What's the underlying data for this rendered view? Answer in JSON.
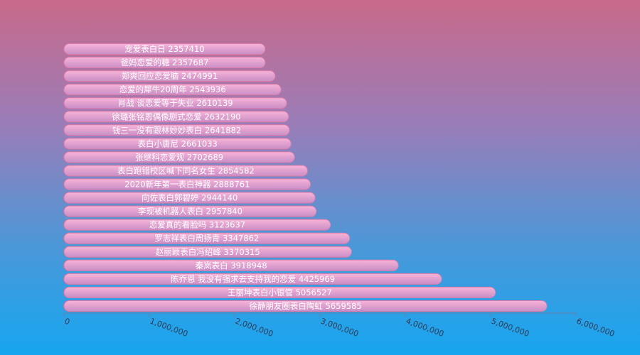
{
  "chart_data": {
    "type": "bar",
    "orientation": "horizontal",
    "title": "",
    "xlabel": "",
    "ylabel": "",
    "xlim": [
      0,
      6000000
    ],
    "x_ticks": [
      "0",
      "1,000,000",
      "2,000,000",
      "3,000,000",
      "4,000,000",
      "5,000,000",
      "6,000,000"
    ],
    "grid": false,
    "colors": {
      "bar_top": "#f7b3d8",
      "bar_bottom": "#c98ec6",
      "bar_border": "#e07aa8"
    },
    "bars": [
      {
        "category": "宠爱表白日",
        "value": 2357410,
        "label": "宠爱表白日 2357410"
      },
      {
        "category": "爸妈恋爱的糖",
        "value": 2357687,
        "label": "爸妈恋爱的糖 2357687"
      },
      {
        "category": "郑爽回应恋爱脑",
        "value": 2474991,
        "label": "郑爽回应恋爱脑 2474991"
      },
      {
        "category": "恋爱的犀牛20周年",
        "value": 2543936,
        "label": "恋爱的犀牛20周年 2543936"
      },
      {
        "category": "肖战 谈恋爱等于失业",
        "value": 2610139,
        "label": "肖战 谈恋爱等于失业 2610139"
      },
      {
        "category": "徐璐张铭恩偶像剧式恋爱",
        "value": 2632190,
        "label": "徐璐张铭恩偶像剧式恋爱 2632190"
      },
      {
        "category": "钱三一没有跟林妙妙表白",
        "value": 2641882,
        "label": "钱三一没有跟林妙妙表白 2641882"
      },
      {
        "category": "表白小唐尼",
        "value": 2661033,
        "label": "表白小唐尼 2661033"
      },
      {
        "category": "张继科恋爱观",
        "value": 2702689,
        "label": "张继科恋爱观 2702689"
      },
      {
        "category": "表白跑错校区喊下同名女生",
        "value": 2854582,
        "label": "表白跑错校区喊下同名女生 2854582"
      },
      {
        "category": "2020新年第一表白神器",
        "value": 2888761,
        "label": "2020新年第一表白神器 2888761"
      },
      {
        "category": "向佐表白郭碧婷",
        "value": 2944140,
        "label": "向佐表白郭碧婷 2944140"
      },
      {
        "category": "李现被机器人表白",
        "value": 2957840,
        "label": "李现被机器人表白 2957840"
      },
      {
        "category": "恋爱真的看脸吗",
        "value": 3123637,
        "label": "恋爱真的看脸吗 3123637"
      },
      {
        "category": "罗志祥表白周扬青",
        "value": 3347862,
        "label": "罗志祥表白周扬青 3347862"
      },
      {
        "category": "赵丽颖表白冯绍峰",
        "value": 3370315,
        "label": "赵丽颖表白冯绍峰 3370315"
      },
      {
        "category": "秦岚表白",
        "value": 3918948,
        "label": "秦岚表白 3918948"
      },
      {
        "category": "陈乔恩 我没有强求去支持我的恋爱",
        "value": 4425969,
        "label": "陈乔恩 我没有强求去支持我的恋爱 4425969"
      },
      {
        "category": "王丽坤表白小银管",
        "value": 5056527,
        "label": "王丽坤表白小银管 5056527"
      },
      {
        "category": "徐静朋友圈表白陶虹",
        "value": 5659585,
        "label": "徐静朋友圈表白陶虹 5659585"
      }
    ]
  }
}
